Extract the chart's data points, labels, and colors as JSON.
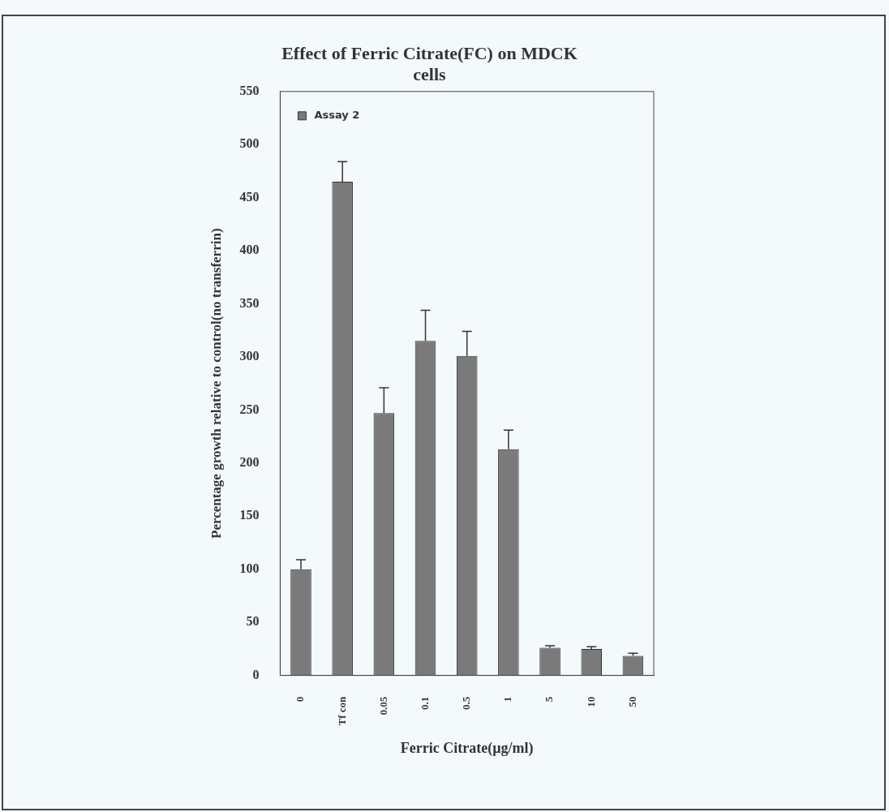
{
  "chart_data": {
    "type": "bar",
    "title": [
      "Effect of Ferric Citrate(FC) on MDCK",
      "cells"
    ],
    "xlabel": "Ferric Citrate(µg/ml)",
    "ylabel": "Percentage growth relative to control(no transferrin)",
    "categories": [
      "0",
      "Tf con",
      "0.05",
      "0.1",
      "0.5",
      "1",
      "5",
      "10",
      "50"
    ],
    "series": [
      {
        "name": "Assay 2",
        "color": "#7a7a7a",
        "values": [
          100,
          465,
          247,
          315,
          301,
          213,
          26,
          25,
          18.5
        ],
        "errors": [
          [
            100,
            109
          ],
          [
            465,
            484
          ],
          [
            247,
            271
          ],
          [
            315,
            344
          ],
          [
            301,
            324
          ],
          [
            213,
            231
          ],
          [
            26,
            28
          ],
          [
            25,
            27
          ],
          [
            18.5,
            21
          ]
        ]
      }
    ],
    "ylim": [
      0,
      550
    ],
    "yticks": [
      0,
      50,
      100,
      150,
      200,
      250,
      300,
      350,
      400,
      450,
      500,
      550
    ],
    "grid": false,
    "legend": "top left"
  }
}
